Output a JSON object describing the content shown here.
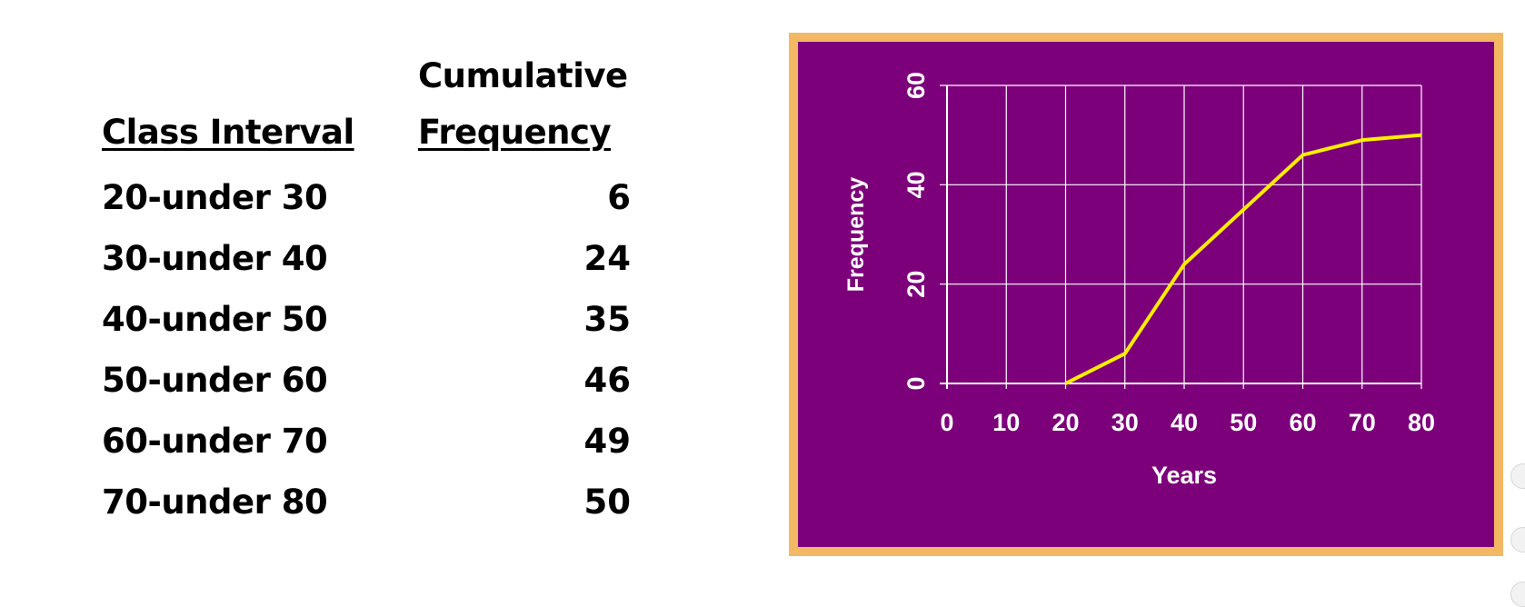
{
  "table": {
    "header": {
      "interval": "Class Interval",
      "freq_line1": "Cumulative",
      "freq_line2": "Frequency"
    },
    "rows": [
      {
        "interval": "20-under 30",
        "freq": "6"
      },
      {
        "interval": "30-under 40",
        "freq": "24"
      },
      {
        "interval": "40-under 50",
        "freq": "35"
      },
      {
        "interval": "50-under 60",
        "freq": "46"
      },
      {
        "interval": "60-under 70",
        "freq": "49"
      },
      {
        "interval": "70-under 80",
        "freq": "50"
      }
    ]
  },
  "chart_data": {
    "type": "line",
    "title": "",
    "xlabel": "Years",
    "ylabel": "Frequency",
    "x": [
      20,
      30,
      40,
      50,
      60,
      70,
      80
    ],
    "series": [
      {
        "values": [
          0,
          6,
          24,
          35,
          46,
          49,
          50
        ]
      }
    ],
    "xlim": [
      0,
      80
    ],
    "ylim": [
      0,
      60
    ],
    "x_ticks": [
      0,
      10,
      20,
      30,
      40,
      50,
      60,
      70,
      80
    ],
    "y_ticks": [
      0,
      20,
      40,
      60
    ],
    "grid": true,
    "colors": {
      "background": "#7d007b",
      "frame": "#f3b863",
      "line": "#ffee00",
      "grid": "#ffffff",
      "text": "#ffffff"
    }
  }
}
